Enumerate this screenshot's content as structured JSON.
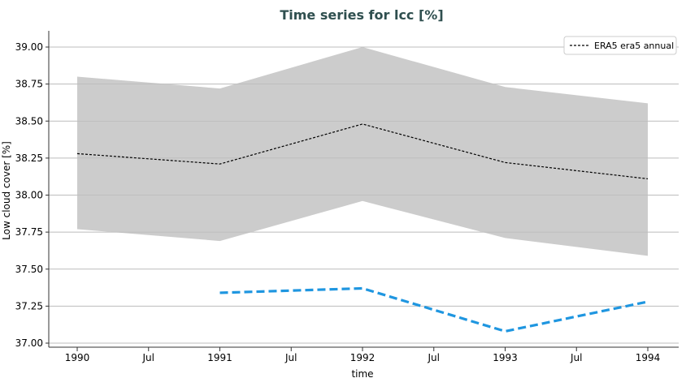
{
  "chart_data": {
    "type": "line",
    "title": "Time series for lcc [%]",
    "xlabel": "time",
    "ylabel": "Low cloud cover [%]",
    "ylim": [
      37.0,
      39.0
    ],
    "yticks": [
      "37.00",
      "37.25",
      "37.50",
      "37.75",
      "38.00",
      "38.25",
      "38.50",
      "38.75",
      "39.00"
    ],
    "xticks": [
      {
        "label": "1990",
        "t": 1990.0
      },
      {
        "label": "Jul",
        "t": 1990.5
      },
      {
        "label": "1991",
        "t": 1991.0
      },
      {
        "label": "Jul",
        "t": 1991.5
      },
      {
        "label": "1992",
        "t": 1992.0
      },
      {
        "label": "Jul",
        "t": 1992.5
      },
      {
        "label": "1993",
        "t": 1993.0
      },
      {
        "label": "Jul",
        "t": 1993.5
      },
      {
        "label": "1994",
        "t": 1994.0
      }
    ],
    "grid": "horizontal",
    "legend_position": "top-right",
    "series": [
      {
        "name": "ERA5 era5 annual",
        "style": "dashed",
        "color": "#000000",
        "x": [
          1990,
          1991,
          1992,
          1993,
          1994
        ],
        "values": [
          38.28,
          38.21,
          38.48,
          38.22,
          38.11
        ],
        "band_upper": [
          38.8,
          38.72,
          39.0,
          38.73,
          38.62
        ],
        "band_lower": [
          37.77,
          37.69,
          37.96,
          37.71,
          37.59
        ],
        "band_color": "#cccccc"
      },
      {
        "style": "dashed",
        "color": "#1f96e0",
        "x": [
          1991,
          1992,
          1993,
          1994
        ],
        "values": [
          37.34,
          37.37,
          37.08,
          37.28
        ]
      }
    ],
    "title_color": "#2f4f4f"
  }
}
